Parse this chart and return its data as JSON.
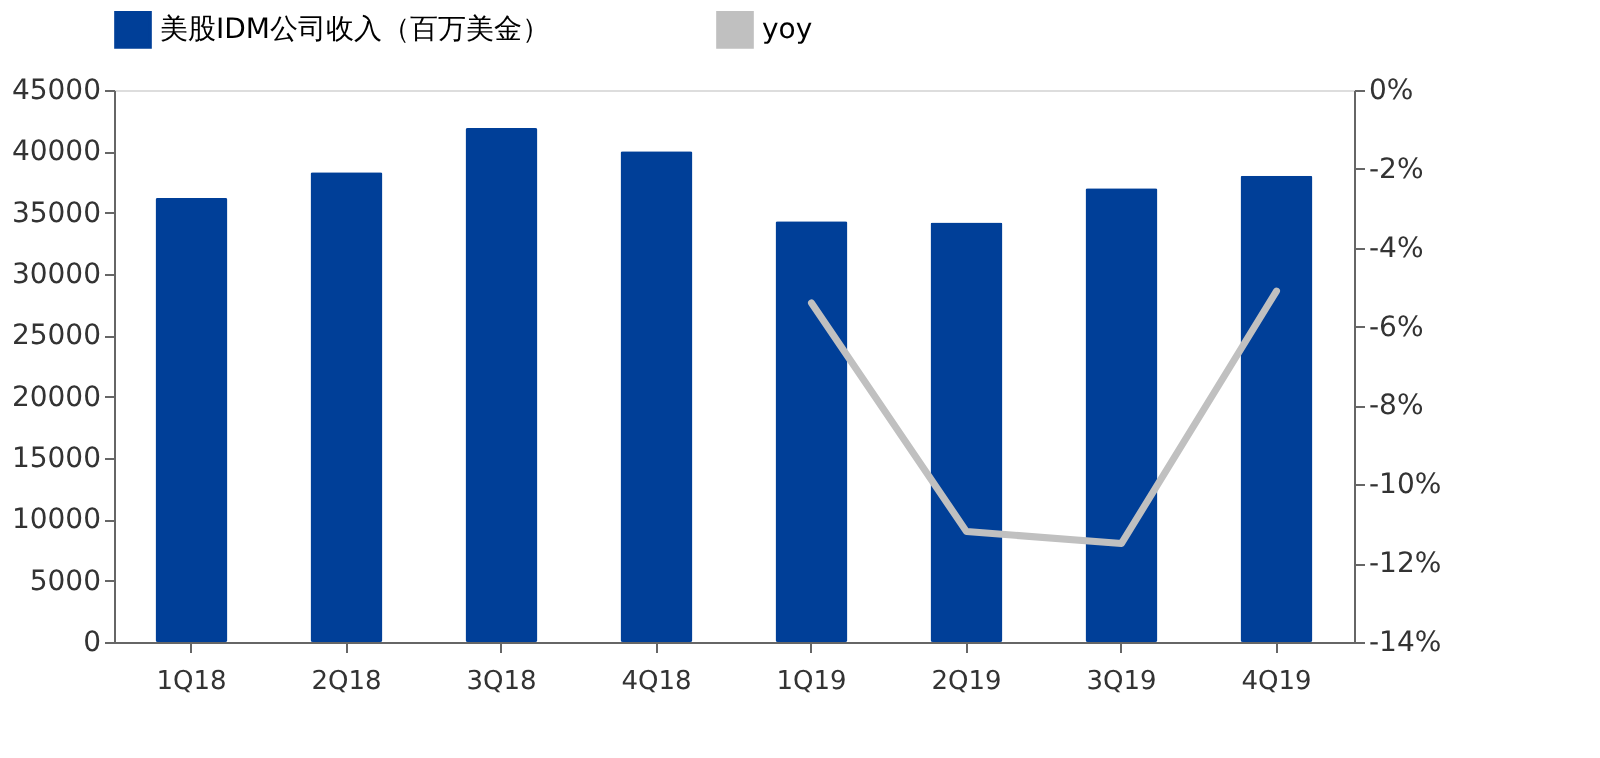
{
  "chart_data": {
    "type": "bar",
    "categories": [
      "1Q18",
      "2Q18",
      "3Q18",
      "4Q18",
      "1Q19",
      "2Q19",
      "3Q19",
      "4Q19"
    ],
    "series": [
      {
        "name": "美股IDM公司收入（百万美金）",
        "color": "#003f98",
        "values": [
          36200,
          38300,
          41900,
          40000,
          34300,
          34200,
          37000,
          38000
        ]
      },
      {
        "name": "yoy",
        "color": "#c0c0c0",
        "type": "line",
        "axis": "y2",
        "values": [
          null,
          null,
          null,
          null,
          -5.4,
          -11.2,
          -11.5,
          -5.1
        ]
      }
    ],
    "ylim": [
      0,
      45000
    ],
    "yticks": [
      0,
      5000,
      10000,
      15000,
      20000,
      25000,
      30000,
      35000,
      40000,
      45000
    ],
    "y2lim": [
      -14,
      0
    ],
    "y2ticks": [
      {
        "value": 0,
        "label": "0%"
      },
      {
        "value": -2,
        "label": "-2%"
      },
      {
        "value": -4,
        "label": "-4%"
      },
      {
        "value": -6,
        "label": "-6%"
      },
      {
        "value": -8,
        "label": "-8%"
      },
      {
        "value": -10,
        "label": "-10%"
      },
      {
        "value": -12,
        "label": "-12%"
      },
      {
        "value": -14,
        "label": "-14%"
      }
    ],
    "grid": false,
    "legend": "top",
    "marker": "none",
    "line_style": "solid"
  }
}
